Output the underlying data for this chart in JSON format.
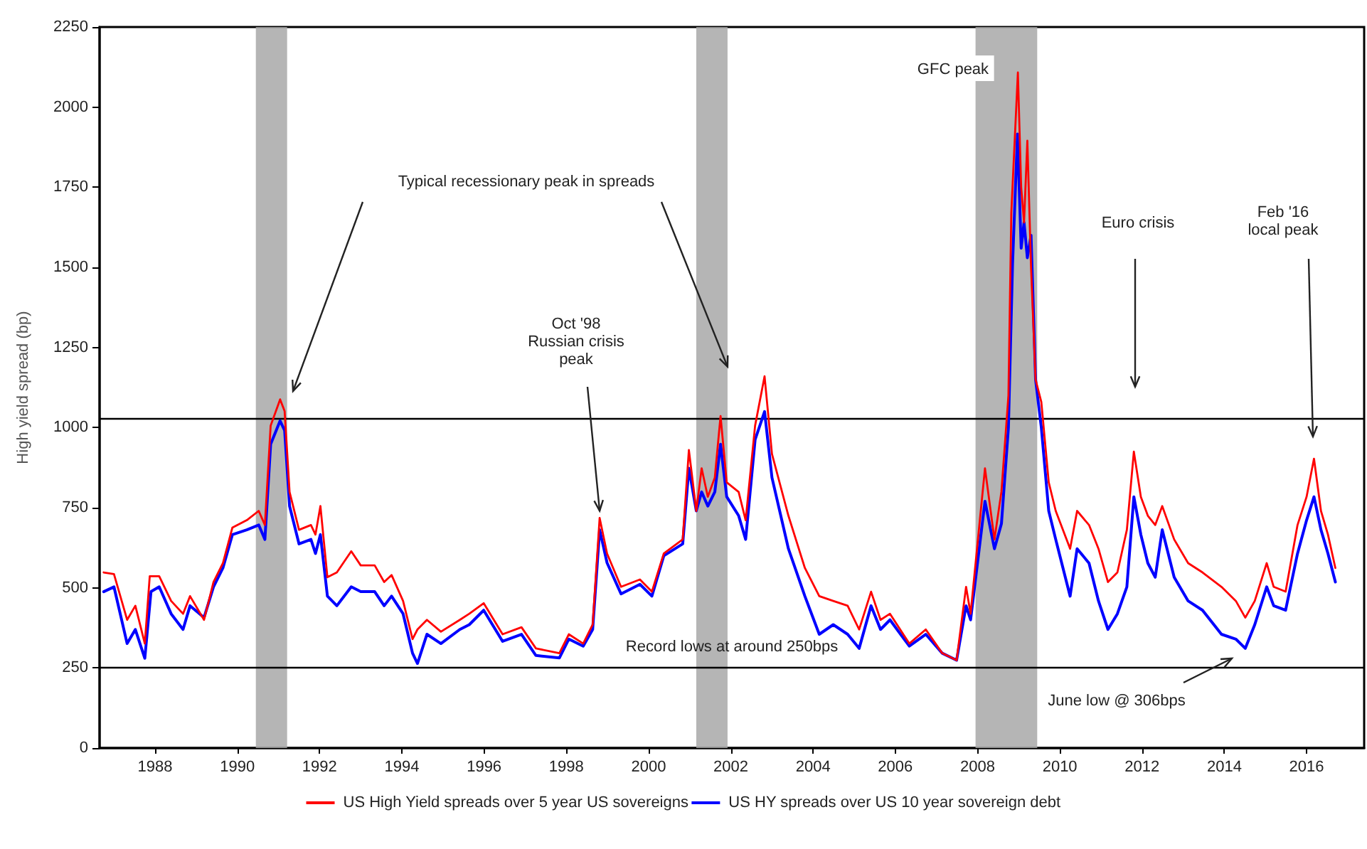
{
  "chart_data": {
    "type": "line",
    "ylabel": "High yield spread (bp)",
    "xlim": [
      1986.65,
      2017.4
    ],
    "xticks": [
      1988,
      1990,
      1992,
      1994,
      1996,
      1998,
      2000,
      2002,
      2004,
      2006,
      2008,
      2010,
      2012,
      2014,
      2016
    ],
    "ylim": [
      0,
      2250
    ],
    "yticks": [
      0,
      250,
      500,
      750,
      1000,
      1250,
      1500,
      1750,
      2000,
      2250
    ],
    "grid": false,
    "legend": "bottom",
    "line_style": "solid",
    "series": [
      {
        "name": "US High Yield spreads over 5 year US sovereigns",
        "color": "#ff0000",
        "x": [
          1986.75,
          1987.0,
          1987.32,
          1987.52,
          1987.75,
          1987.87,
          1988.1,
          1988.39,
          1988.68,
          1988.85,
          1989.19,
          1989.42,
          1989.65,
          1989.88,
          1990.23,
          1990.52,
          1990.67,
          1990.81,
          1991.04,
          1991.15,
          1991.27,
          1991.5,
          1991.79,
          1991.9,
          1992.02,
          1992.19,
          1992.42,
          1992.77,
          1993.0,
          1993.34,
          1993.57,
          1993.75,
          1994.03,
          1994.26,
          1994.38,
          1994.61,
          1994.95,
          1995.41,
          1995.64,
          1995.99,
          1996.45,
          1996.91,
          1997.26,
          1997.83,
          1998.06,
          1998.41,
          1998.64,
          1998.81,
          1998.99,
          1999.33,
          1999.79,
          2000.08,
          2000.37,
          2000.83,
          2000.98,
          2001.16,
          2001.29,
          2001.44,
          2001.61,
          2001.75,
          2001.9,
          2002.19,
          2002.36,
          2002.59,
          2002.82,
          2003.0,
          2003.4,
          2003.8,
          2004.15,
          2004.49,
          2004.84,
          2005.12,
          2005.41,
          2005.64,
          2005.87,
          2006.34,
          2006.74,
          2007.14,
          2007.49,
          2007.72,
          2007.83,
          2008.18,
          2008.41,
          2008.58,
          2008.75,
          2008.82,
          2008.98,
          2009.06,
          2009.13,
          2009.21,
          2009.3,
          2009.41,
          2009.55,
          2009.73,
          2009.9,
          2010.25,
          2010.42,
          2010.71,
          2010.94,
          2011.17,
          2011.4,
          2011.63,
          2011.8,
          2011.97,
          2012.14,
          2012.32,
          2012.49,
          2012.78,
          2013.12,
          2013.47,
          2013.93,
          2014.28,
          2014.51,
          2014.74,
          2015.03,
          2015.2,
          2015.49,
          2015.78,
          2016.0,
          2016.18,
          2016.35,
          2016.52,
          2016.7
        ],
        "values": [
          548,
          543,
          400,
          444,
          326,
          536,
          536,
          459,
          419,
          474,
          400,
          518,
          577,
          688,
          711,
          740,
          696,
          1006,
          1088,
          1051,
          799,
          681,
          696,
          666,
          755,
          533,
          548,
          614,
          570,
          570,
          518,
          540,
          459,
          340,
          370,
          400,
          363,
          400,
          419,
          452,
          355,
          377,
          311,
          296,
          355,
          326,
          385,
          718,
          607,
          503,
          526,
          488,
          607,
          651,
          930,
          740,
          873,
          784,
          844,
          1036,
          829,
          799,
          711,
          1006,
          1160,
          918,
          725,
          562,
          474,
          459,
          444,
          370,
          488,
          400,
          419,
          326,
          370,
          296,
          274,
          503,
          419,
          873,
          651,
          800,
          1100,
          1670,
          2108,
          1750,
          1640,
          1895,
          1500,
          1150,
          1080,
          829,
          740,
          622,
          740,
          696,
          622,
          518,
          548,
          681,
          925,
          784,
          725,
          696,
          755,
          651,
          577,
          548,
          503,
          459,
          407,
          459,
          577,
          503,
          488,
          696,
          784,
          903,
          740,
          666,
          562
        ]
      },
      {
        "name": "US HY spreads over US 10 year sovereign debt",
        "color": "#0000ff",
        "x": [
          1986.75,
          1987.0,
          1987.32,
          1987.52,
          1987.75,
          1987.9,
          1988.1,
          1988.39,
          1988.68,
          1988.85,
          1989.19,
          1989.42,
          1989.65,
          1989.88,
          1990.23,
          1990.52,
          1990.67,
          1990.81,
          1991.04,
          1991.15,
          1991.27,
          1991.5,
          1991.79,
          1991.9,
          1992.02,
          1992.19,
          1992.42,
          1992.77,
          1993.0,
          1993.34,
          1993.57,
          1993.75,
          1994.03,
          1994.26,
          1994.38,
          1994.61,
          1994.95,
          1995.41,
          1995.64,
          1995.99,
          1996.45,
          1996.91,
          1997.26,
          1997.83,
          1998.06,
          1998.41,
          1998.64,
          1998.81,
          1998.99,
          1999.33,
          1999.79,
          2000.08,
          2000.37,
          2000.83,
          2000.98,
          2001.16,
          2001.29,
          2001.44,
          2001.61,
          2001.75,
          2001.9,
          2002.19,
          2002.36,
          2002.59,
          2002.82,
          2003.0,
          2003.4,
          2003.8,
          2004.15,
          2004.49,
          2004.84,
          2005.12,
          2005.41,
          2005.64,
          2005.87,
          2006.34,
          2006.74,
          2007.14,
          2007.49,
          2007.72,
          2007.83,
          2008.18,
          2008.41,
          2008.58,
          2008.75,
          2008.85,
          2008.97,
          2009.06,
          2009.13,
          2009.21,
          2009.3,
          2009.41,
          2009.55,
          2009.73,
          2009.9,
          2010.25,
          2010.42,
          2010.71,
          2010.94,
          2011.17,
          2011.4,
          2011.63,
          2011.8,
          2011.97,
          2012.14,
          2012.32,
          2012.49,
          2012.78,
          2013.12,
          2013.47,
          2013.93,
          2014.28,
          2014.51,
          2014.74,
          2015.03,
          2015.2,
          2015.49,
          2015.78,
          2016.0,
          2016.18,
          2016.35,
          2016.52,
          2016.7
        ],
        "values": [
          488,
          503,
          326,
          370,
          280,
          488,
          503,
          419,
          370,
          444,
          407,
          503,
          562,
          666,
          681,
          696,
          651,
          948,
          1021,
          991,
          755,
          637,
          651,
          607,
          666,
          474,
          444,
          503,
          488,
          488,
          444,
          474,
          419,
          296,
          264,
          355,
          326,
          370,
          385,
          430,
          333,
          355,
          289,
          281,
          340,
          318,
          370,
          681,
          578,
          481,
          511,
          474,
          600,
          637,
          873,
          740,
          799,
          755,
          799,
          948,
          784,
          725,
          651,
          962,
          1050,
          844,
          622,
          474,
          355,
          385,
          355,
          311,
          444,
          370,
          400,
          318,
          355,
          296,
          274,
          444,
          400,
          770,
          622,
          700,
          1000,
          1510,
          1916,
          1560,
          1640,
          1530,
          1600,
          1150,
          1000,
          740,
          651,
          474,
          622,
          577,
          459,
          370,
          419,
          503,
          784,
          666,
          577,
          533,
          681,
          533,
          459,
          430,
          355,
          340,
          311,
          385,
          503,
          444,
          430,
          607,
          711,
          784,
          681,
          607,
          518
        ]
      }
    ],
    "ref_lines": [
      {
        "axis": "y",
        "value": 1030,
        "color": "#000000"
      },
      {
        "axis": "y",
        "value": 250,
        "label": "Record lows at around 250bps",
        "color": "#000000"
      }
    ],
    "bands": [
      {
        "axis": "x",
        "from": 1990.45,
        "to": 1991.21,
        "color": "#a8a8a8"
      },
      {
        "axis": "x",
        "from": 2001.16,
        "to": 2001.92,
        "color": "#a8a8a8"
      },
      {
        "axis": "x",
        "from": 2007.95,
        "to": 2009.45,
        "color": "#a8a8a8"
      }
    ],
    "annotations": [
      {
        "text": "Typical recessionary peak in spreads",
        "x": 2001.92,
        "y": 1190
      },
      {
        "text": "Oct '98\nRussian crisis\npeak",
        "x": 1998.81,
        "y": 718
      },
      "GFC peak",
      "Euro crisis",
      "Feb '16\nlocal peak",
      "June low @ 306bps"
    ]
  }
}
